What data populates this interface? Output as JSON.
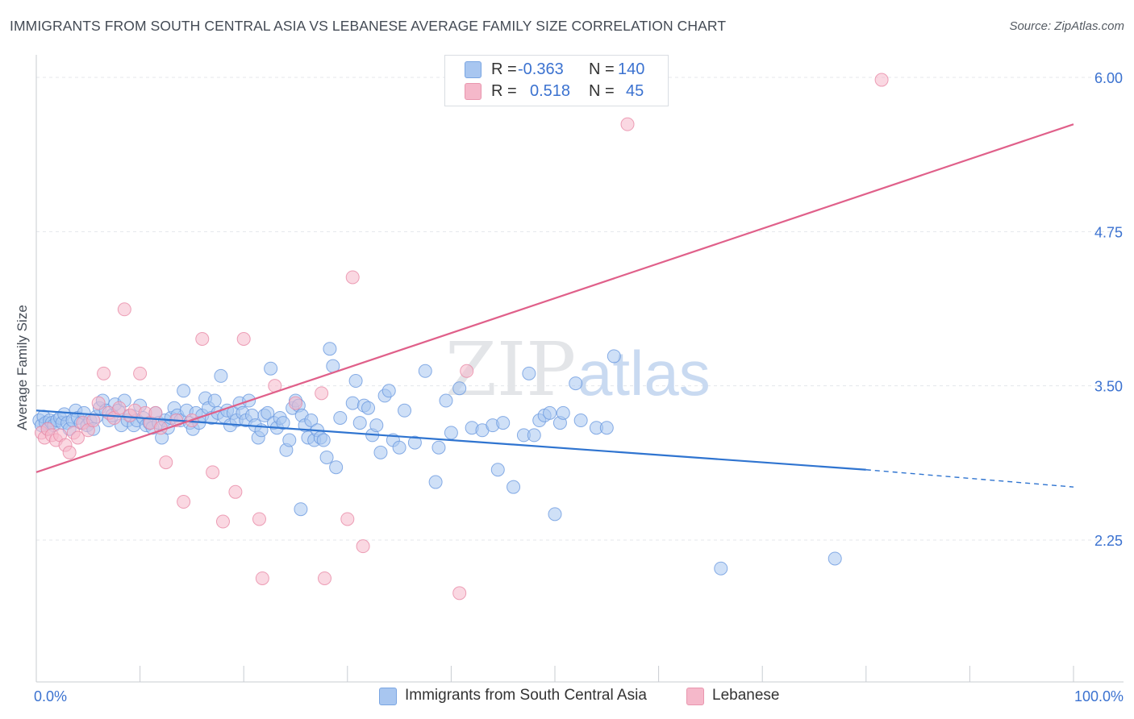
{
  "title": "IMMIGRANTS FROM SOUTH CENTRAL ASIA VS LEBANESE AVERAGE FAMILY SIZE CORRELATION CHART",
  "source": "Source: ZipAtlas.com",
  "watermark": {
    "zip": "ZIP",
    "atlas": "atlas"
  },
  "legend": {
    "rows": [
      {
        "r_label": "R =",
        "r_value": "-0.363",
        "n_label": "N =",
        "n_value": "140",
        "color": "#a8c6f0"
      },
      {
        "r_label": "R =",
        "r_value": "0.518",
        "n_label": "N =",
        "n_value": "45",
        "color": "#f5b8ca"
      }
    ]
  },
  "chart_data": {
    "type": "scatter",
    "title": "IMMIGRANTS FROM SOUTH CENTRAL ASIA VS LEBANESE AVERAGE FAMILY SIZE CORRELATION CHART",
    "xlabel": "",
    "ylabel": "Average Family Size",
    "xlim": [
      0,
      100
    ],
    "ylim": [
      1.0,
      6.15
    ],
    "x_tick_labels": [
      "0.0%",
      "100.0%"
    ],
    "y_ticks": [
      2.25,
      3.5,
      4.75,
      6.0
    ],
    "y_tick_labels": [
      "2.25",
      "3.50",
      "4.75",
      "6.00"
    ],
    "grid": true,
    "legend_position": "bottom",
    "series": [
      {
        "name": "Immigrants from South Central Asia",
        "color": "#6b9ae0",
        "fill": "#a8c6f0",
        "line_color": "#2f74d0",
        "trend": {
          "x0": 0,
          "y0": 3.3,
          "x1": 80,
          "y1": 2.82,
          "dash_to_x": 100,
          "dash_to_y": 2.68
        },
        "points": [
          [
            0.3,
            3.22
          ],
          [
            0.5,
            3.18
          ],
          [
            0.7,
            3.25
          ],
          [
            0.9,
            3.2
          ],
          [
            1.1,
            3.15
          ],
          [
            1.3,
            3.22
          ],
          [
            1.5,
            3.2
          ],
          [
            1.7,
            3.18
          ],
          [
            2.0,
            3.22
          ],
          [
            2.3,
            3.24
          ],
          [
            2.5,
            3.2
          ],
          [
            2.7,
            3.27
          ],
          [
            3.0,
            3.2
          ],
          [
            3.2,
            3.15
          ],
          [
            3.5,
            3.22
          ],
          [
            3.8,
            3.3
          ],
          [
            4.0,
            3.24
          ],
          [
            4.3,
            3.2
          ],
          [
            4.6,
            3.28
          ],
          [
            4.9,
            3.18
          ],
          [
            5.2,
            3.22
          ],
          [
            5.5,
            3.15
          ],
          [
            5.8,
            3.25
          ],
          [
            6.1,
            3.32
          ],
          [
            6.4,
            3.38
          ],
          [
            6.7,
            3.3
          ],
          [
            7.0,
            3.22
          ],
          [
            7.3,
            3.26
          ],
          [
            7.6,
            3.35
          ],
          [
            7.9,
            3.3
          ],
          [
            8.2,
            3.18
          ],
          [
            8.5,
            3.38
          ],
          [
            8.8,
            3.22
          ],
          [
            9.1,
            3.26
          ],
          [
            9.4,
            3.18
          ],
          [
            9.7,
            3.22
          ],
          [
            10.0,
            3.34
          ],
          [
            10.3,
            3.24
          ],
          [
            10.6,
            3.18
          ],
          [
            10.9,
            3.2
          ],
          [
            11.2,
            3.16
          ],
          [
            11.5,
            3.28
          ],
          [
            11.8,
            3.2
          ],
          [
            12.1,
            3.08
          ],
          [
            12.4,
            3.22
          ],
          [
            12.7,
            3.16
          ],
          [
            13.0,
            3.24
          ],
          [
            13.3,
            3.32
          ],
          [
            13.6,
            3.26
          ],
          [
            13.9,
            3.22
          ],
          [
            14.2,
            3.46
          ],
          [
            14.5,
            3.3
          ],
          [
            14.8,
            3.2
          ],
          [
            15.1,
            3.15
          ],
          [
            15.4,
            3.28
          ],
          [
            15.7,
            3.2
          ],
          [
            16.0,
            3.26
          ],
          [
            16.3,
            3.4
          ],
          [
            16.6,
            3.32
          ],
          [
            16.9,
            3.24
          ],
          [
            17.2,
            3.38
          ],
          [
            17.5,
            3.28
          ],
          [
            17.8,
            3.58
          ],
          [
            18.1,
            3.25
          ],
          [
            18.4,
            3.3
          ],
          [
            18.7,
            3.18
          ],
          [
            19.0,
            3.28
          ],
          [
            19.3,
            3.22
          ],
          [
            19.6,
            3.36
          ],
          [
            19.9,
            3.28
          ],
          [
            20.2,
            3.22
          ],
          [
            20.5,
            3.38
          ],
          [
            20.8,
            3.26
          ],
          [
            21.1,
            3.18
          ],
          [
            21.4,
            3.08
          ],
          [
            21.7,
            3.14
          ],
          [
            22.0,
            3.26
          ],
          [
            22.3,
            3.28
          ],
          [
            22.6,
            3.64
          ],
          [
            22.9,
            3.2
          ],
          [
            23.2,
            3.16
          ],
          [
            23.5,
            3.24
          ],
          [
            23.8,
            3.2
          ],
          [
            24.1,
            2.98
          ],
          [
            24.4,
            3.06
          ],
          [
            24.7,
            3.32
          ],
          [
            25.0,
            3.38
          ],
          [
            25.3,
            3.34
          ],
          [
            25.6,
            3.26
          ],
          [
            25.9,
            3.18
          ],
          [
            26.2,
            3.08
          ],
          [
            26.5,
            3.22
          ],
          [
            26.8,
            3.06
          ],
          [
            27.1,
            3.14
          ],
          [
            27.4,
            3.08
          ],
          [
            27.7,
            3.06
          ],
          [
            28.0,
            2.92
          ],
          [
            28.3,
            3.8
          ],
          [
            28.6,
            3.66
          ],
          [
            28.9,
            2.84
          ],
          [
            29.3,
            3.24
          ],
          [
            30.5,
            3.36
          ],
          [
            30.8,
            3.54
          ],
          [
            31.2,
            3.2
          ],
          [
            31.6,
            3.34
          ],
          [
            32.0,
            3.32
          ],
          [
            32.4,
            3.1
          ],
          [
            32.8,
            3.18
          ],
          [
            33.2,
            2.96
          ],
          [
            33.6,
            3.42
          ],
          [
            34.0,
            3.46
          ],
          [
            34.4,
            3.06
          ],
          [
            35.0,
            3.0
          ],
          [
            35.5,
            3.3
          ],
          [
            36.5,
            3.04
          ],
          [
            37.5,
            3.62
          ],
          [
            38.5,
            2.72
          ],
          [
            38.8,
            3.0
          ],
          [
            39.5,
            3.38
          ],
          [
            40.0,
            3.12
          ],
          [
            40.8,
            3.48
          ],
          [
            42.0,
            3.16
          ],
          [
            43.0,
            3.14
          ],
          [
            44.0,
            3.18
          ],
          [
            44.5,
            2.82
          ],
          [
            45.0,
            3.2
          ],
          [
            46.0,
            2.68
          ],
          [
            47.0,
            3.1
          ],
          [
            47.5,
            3.6
          ],
          [
            48.0,
            3.1
          ],
          [
            48.5,
            3.22
          ],
          [
            49.0,
            3.26
          ],
          [
            49.5,
            3.28
          ],
          [
            50.0,
            2.46
          ],
          [
            50.5,
            3.2
          ],
          [
            50.8,
            3.28
          ],
          [
            52.0,
            3.52
          ],
          [
            52.5,
            3.22
          ],
          [
            54.0,
            3.16
          ],
          [
            55.0,
            3.16
          ],
          [
            55.7,
            3.74
          ],
          [
            25.5,
            2.5
          ],
          [
            66.0,
            2.02
          ],
          [
            77.0,
            2.1
          ]
        ]
      },
      {
        "name": "Lebanese",
        "color": "#e88aa6",
        "fill": "#f5b8ca",
        "line_color": "#e0608a",
        "trend": {
          "x0": 0,
          "y0": 2.8,
          "x1": 100,
          "y1": 5.62
        },
        "points": [
          [
            0.5,
            3.12
          ],
          [
            0.8,
            3.08
          ],
          [
            1.1,
            3.15
          ],
          [
            1.5,
            3.1
          ],
          [
            1.9,
            3.06
          ],
          [
            2.3,
            3.1
          ],
          [
            2.8,
            3.02
          ],
          [
            3.2,
            2.96
          ],
          [
            3.6,
            3.12
          ],
          [
            4.0,
            3.08
          ],
          [
            4.5,
            3.2
          ],
          [
            5.0,
            3.14
          ],
          [
            5.5,
            3.22
          ],
          [
            6.0,
            3.36
          ],
          [
            6.5,
            3.6
          ],
          [
            7.0,
            3.28
          ],
          [
            7.5,
            3.24
          ],
          [
            8.0,
            3.32
          ],
          [
            8.5,
            4.12
          ],
          [
            9.0,
            3.26
          ],
          [
            9.5,
            3.3
          ],
          [
            10.0,
            3.6
          ],
          [
            10.5,
            3.28
          ],
          [
            11.0,
            3.2
          ],
          [
            11.5,
            3.28
          ],
          [
            12.0,
            3.16
          ],
          [
            12.5,
            2.88
          ],
          [
            13.5,
            3.22
          ],
          [
            14.2,
            2.56
          ],
          [
            15.0,
            3.22
          ],
          [
            16.0,
            3.88
          ],
          [
            17.0,
            2.8
          ],
          [
            18.0,
            2.4
          ],
          [
            19.2,
            2.64
          ],
          [
            20.0,
            3.88
          ],
          [
            21.5,
            2.42
          ],
          [
            21.8,
            1.94
          ],
          [
            23.0,
            3.5
          ],
          [
            25.0,
            3.36
          ],
          [
            27.5,
            3.44
          ],
          [
            27.8,
            1.94
          ],
          [
            30.0,
            2.42
          ],
          [
            31.5,
            2.2
          ],
          [
            41.5,
            3.62
          ],
          [
            40.8,
            1.82
          ],
          [
            81.5,
            5.98
          ],
          [
            57.0,
            5.62
          ],
          [
            30.5,
            4.38
          ]
        ]
      }
    ]
  },
  "bottom_legend": [
    {
      "label": "Immigrants from South Central Asia",
      "color": "#a8c6f0"
    },
    {
      "label": "Lebanese",
      "color": "#f5b8ca"
    }
  ]
}
